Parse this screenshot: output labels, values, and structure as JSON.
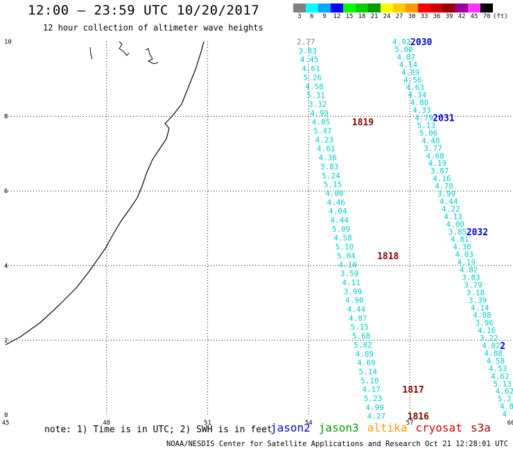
{
  "title": "12:00 – 23:59 UTC 10/20/2017",
  "subtitle": "12 hour collection of altimeter wave heights",
  "legend": {
    "unit": "(ft)",
    "swatches": [
      {
        "label": "3",
        "color": "#808080"
      },
      {
        "label": "6",
        "color": "#00ffff"
      },
      {
        "label": "9",
        "color": "#00aaff"
      },
      {
        "label": "12",
        "color": "#0000ff"
      },
      {
        "label": "15",
        "color": "#00ff00"
      },
      {
        "label": "18",
        "color": "#00cc00"
      },
      {
        "label": "21",
        "color": "#009900"
      },
      {
        "label": "24",
        "color": "#ffff00"
      },
      {
        "label": "27",
        "color": "#ffcc00"
      },
      {
        "label": "30",
        "color": "#ff9900"
      },
      {
        "label": "33",
        "color": "#ff0000"
      },
      {
        "label": "36",
        "color": "#cc0000"
      },
      {
        "label": "39",
        "color": "#990000"
      },
      {
        "label": "42",
        "color": "#990099"
      },
      {
        "label": "45",
        "color": "#ff33ff"
      },
      {
        "label": "70",
        "color": "#000000"
      }
    ]
  },
  "axes": {
    "x_ticks": [
      "45",
      "48",
      "51",
      "54",
      "57",
      "60"
    ],
    "y_ticks": [
      "0",
      "2",
      "4",
      "6",
      "8",
      "10"
    ]
  },
  "tracks": [
    {
      "values": [
        "2.77",
        "3.83",
        "4.45",
        "4.61",
        "5.26",
        "4.58",
        "5.31",
        "3.32",
        "4.99",
        "4.05",
        "5.47",
        "4.23",
        "4.61",
        "4.36",
        "3.83",
        "5.24",
        "5.15",
        "4.00",
        "4.46",
        "4.04",
        "4.44",
        "5.09",
        "4.58",
        "5.10",
        "5.04",
        "4.10",
        "3.59",
        "4.11",
        "3.99",
        "4.90",
        "4.44",
        "4.87",
        "5.15",
        "5.68",
        "5.82",
        "4.89",
        "4.69",
        "5.14",
        "5.10",
        "4.17",
        "5.23",
        "4.99",
        "4.27"
      ],
      "times": [
        {
          "label": "1819",
          "after_index": 9
        },
        {
          "label": "1818",
          "after_index": 24
        },
        {
          "label": "1817",
          "after_index": 39
        },
        {
          "label": "1816",
          "after_index": 42
        }
      ]
    },
    {
      "values": [
        "4.92",
        "5.00",
        "4.07",
        "4.14",
        "4.89",
        "4.56",
        "4.63",
        "4.34",
        "4.80",
        "4.33",
        "4.79",
        "5.13",
        "5.06",
        "4.48",
        "3.77",
        "4.68",
        "4.19",
        "3.87",
        "4.16",
        "4.70",
        "3.99",
        "4.44",
        "4.22",
        "4.13",
        "4.00",
        "3.85",
        "4.81",
        "4.30",
        "4.03",
        "4.19",
        "4.82",
        "3.83",
        "3.79",
        "3.18",
        "3.39",
        "4.14",
        "4.88",
        "3.96",
        "4.16",
        "3.22",
        "4.02",
        "4.88",
        "4.58",
        "4.53",
        "4.62",
        "5.13",
        "4.62",
        "5.2",
        "4.8",
        "4"
      ],
      "times": [
        {
          "label": "2030",
          "after_index": 0
        },
        {
          "label": "2031",
          "after_index": 10
        },
        {
          "label": "2032",
          "after_index": 25
        },
        {
          "label": "2",
          "after_index": 40
        }
      ]
    }
  ],
  "note": "note: 1) Time is in UTC; 2) SWH is in feet",
  "satellites": [
    {
      "name": "jason2",
      "color": "#0000cc"
    },
    {
      "name": "jason3",
      "color": "#009900"
    },
    {
      "name": "altika",
      "color": "#ff9900"
    },
    {
      "name": "cryosat",
      "color": "#cc0000"
    },
    {
      "name": "s3a",
      "color": "#990000"
    }
  ],
  "credit": "NOAA/NESDIS Center for Satellite Applications and Research   Oct 21 12:28:01 UTC 2017",
  "colors": {
    "swh_text": "#00cccc",
    "gray_text": "#808080",
    "grid": "#000000",
    "coast": "#000000"
  }
}
